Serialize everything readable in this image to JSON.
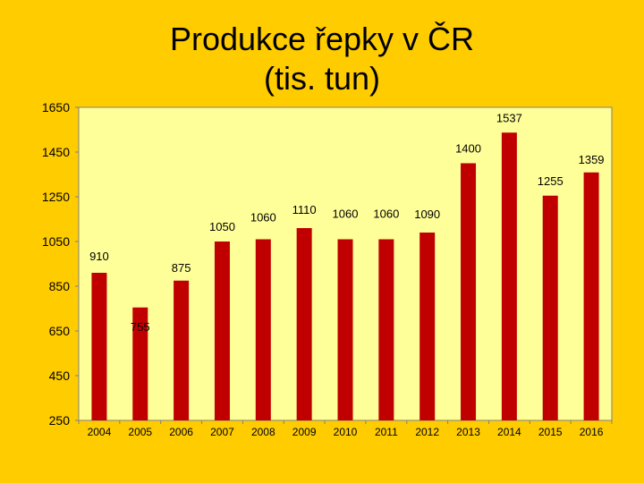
{
  "chart_data": {
    "type": "bar",
    "title_line1": "Produkce řepky v ČR",
    "title_line2": "(tis. tun)",
    "xlabel": "",
    "ylabel": "",
    "categories": [
      "2004",
      "2005",
      "2006",
      "2007",
      "2008",
      "2009",
      "2010",
      "2011",
      "2012",
      "2013",
      "2014",
      "2015",
      "2016"
    ],
    "values": [
      910,
      755,
      875,
      1050,
      1060,
      1110,
      1060,
      1060,
      1090,
      1400,
      1537,
      1255,
      1359
    ],
    "ylim": [
      250,
      1650
    ],
    "yticks": [
      250,
      450,
      650,
      850,
      1050,
      1250,
      1450,
      1650
    ],
    "grid": false,
    "legend": "none",
    "colors": {
      "bar": "#C00000",
      "plot_background": "#FFFF99",
      "page_background": "#FFCC00"
    }
  }
}
